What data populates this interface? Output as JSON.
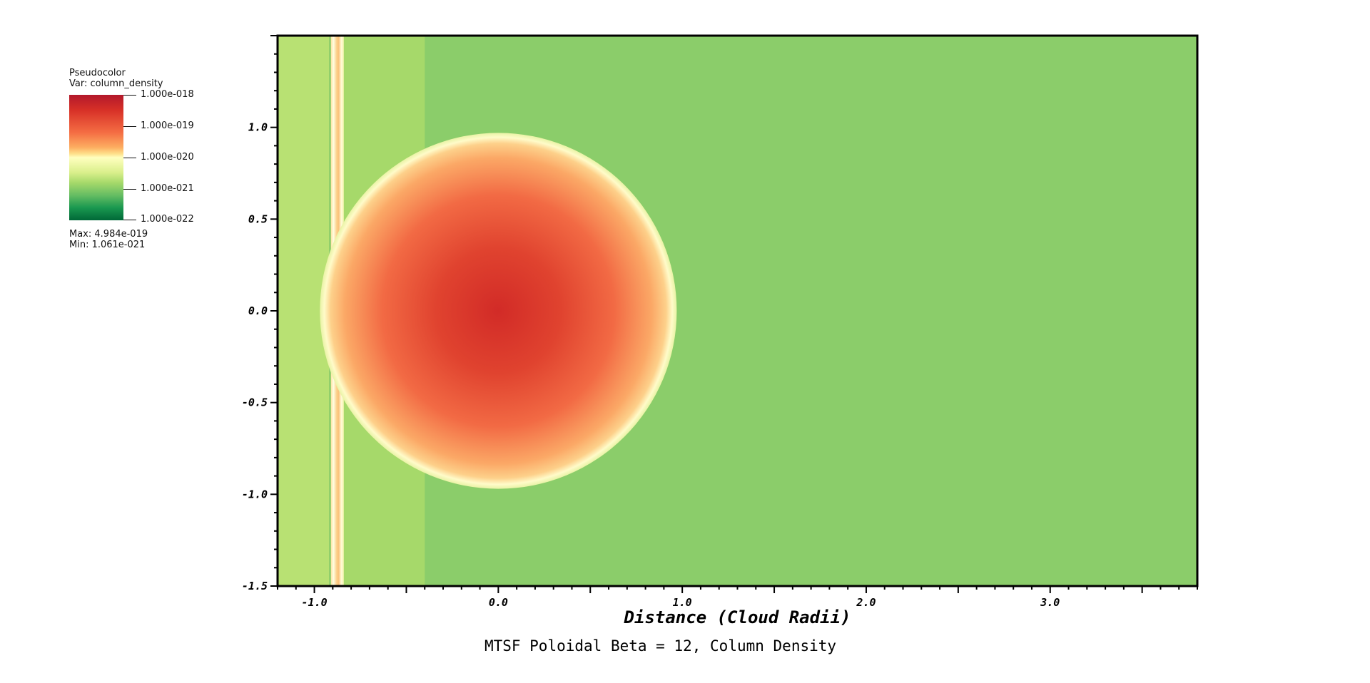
{
  "legend": {
    "title": "Pseudocolor",
    "var_label": "Var: column_density",
    "ticks": [
      "1.000e-018",
      "1.000e-019",
      "1.000e-020",
      "1.000e-021",
      "1.000e-022"
    ],
    "max_label": "Max:  4.984e-019",
    "min_label": "Min:  1.061e-021"
  },
  "chart_data": {
    "type": "heatmap",
    "title": "MTSF Poloidal Beta = 12, Column Density",
    "xlabel": "Distance (Cloud Radii)",
    "ylabel": "",
    "xlim": [
      -1.2,
      3.8
    ],
    "ylim": [
      -1.5,
      1.5
    ],
    "x_ticks": [
      "-1.0",
      "0.0",
      "1.0",
      "2.0",
      "3.0"
    ],
    "x_tick_values": [
      -1.0,
      0.0,
      1.0,
      2.0,
      3.0
    ],
    "y_ticks": [
      "1.0",
      "0.5",
      "0.0",
      "-0.5",
      "-1.0",
      "-1.5"
    ],
    "y_tick_values": [
      1.0,
      0.5,
      0.0,
      -0.5,
      -1.0,
      -1.5
    ],
    "colorbar": {
      "scale": "log",
      "range": [
        1e-22,
        1e-18
      ],
      "max": 4.984e-19,
      "min": 1.061e-21,
      "colormap": "red-yellow-green"
    },
    "features": {
      "cloud_center": [
        0.0,
        0.0
      ],
      "cloud_radius": 0.97,
      "shock_front_x": -0.88,
      "upstream_region_x": [
        -1.2,
        -0.4
      ]
    }
  }
}
